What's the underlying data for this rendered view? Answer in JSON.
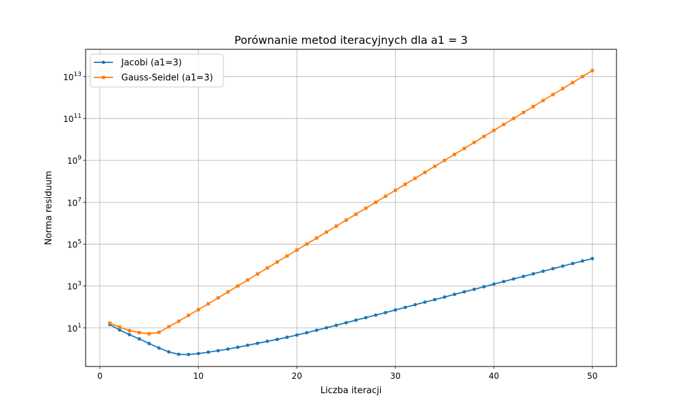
{
  "chart_data": {
    "type": "line",
    "title": "Porównanie metod iteracyjnych dla a1 = 3",
    "xlabel": "Liczba iteracji",
    "ylabel": "Norma residuum",
    "xlim": [
      -1.45,
      52.45
    ],
    "ylim": [
      0.145,
      200000000000000
    ],
    "yscale": "log",
    "grid": true,
    "legend_position": "top-left",
    "x_ticks": [
      0,
      10,
      20,
      30,
      40,
      50
    ],
    "y_ticks": [
      {
        "value": 10,
        "base": "10",
        "exp": "1"
      },
      {
        "value": 1000,
        "base": "10",
        "exp": "3"
      },
      {
        "value": 100000,
        "base": "10",
        "exp": "5"
      },
      {
        "value": 10000000,
        "base": "10",
        "exp": "7"
      },
      {
        "value": 1000000000,
        "base": "10",
        "exp": "9"
      },
      {
        "value": 100000000000,
        "base": "10",
        "exp": "11"
      },
      {
        "value": 10000000000000,
        "base": "10",
        "exp": "13"
      }
    ],
    "x": [
      1,
      2,
      3,
      4,
      5,
      6,
      7,
      8,
      9,
      10,
      11,
      12,
      13,
      14,
      15,
      16,
      17,
      18,
      19,
      20,
      21,
      22,
      23,
      24,
      25,
      26,
      27,
      28,
      29,
      30,
      31,
      32,
      33,
      34,
      35,
      36,
      37,
      38,
      39,
      40,
      41,
      42,
      43,
      44,
      45,
      46,
      47,
      48,
      49,
      50
    ],
    "series": [
      {
        "name": "Jacobi (a1=3)",
        "color": "#1f77b4",
        "marker": "circle",
        "values": [
          14.5,
          8.0,
          4.8,
          3.0,
          1.8,
          1.1,
          0.72,
          0.55,
          0.54,
          0.6,
          0.7,
          0.82,
          0.98,
          1.2,
          1.5,
          1.85,
          2.3,
          2.85,
          3.6,
          4.6,
          5.9,
          7.8,
          10.2,
          13.4,
          17.8,
          23.5,
          31.0,
          41.0,
          54.0,
          72.0,
          96.0,
          128.0,
          170.0,
          225.0,
          300.0,
          400.0,
          530.0,
          700.0,
          930.0,
          1240.0,
          1650.0,
          2180.0,
          2900.0,
          3850.0,
          5100.0,
          6750.0,
          8950.0,
          11900.0,
          15700.0,
          20500.0
        ]
      },
      {
        "name": "Gauss-Seidel (a1=3)",
        "color": "#ff7f0e",
        "marker": "square",
        "values": [
          17.0,
          11.0,
          7.5,
          6.0,
          5.3,
          6.2,
          11.5,
          21.0,
          40.0,
          75.0,
          142.0,
          272.0,
          525.0,
          1010.0,
          1950.0,
          3770.0,
          7300.0,
          14100.0,
          27200.0,
          52500.0,
          101000.0,
          195000.0,
          376000.0,
          725000.0,
          1400000.0,
          2700000.0,
          5200000.0,
          10000000.0,
          19400000.0,
          37500000.0,
          72000000.0,
          139000000.0,
          268000000.0,
          518000000.0,
          1000000000.0,
          1930000000.0,
          3720000000.0,
          7190000000.0,
          13900000000.0,
          26800000000.0,
          51700000000.0,
          99800000000.0,
          193000000000.0,
          372000000000.0,
          718000000000.0,
          1390000000000.0,
          2680000000000.0,
          5170000000000.0,
          10000000000000.0,
          19300000000000.0
        ]
      }
    ]
  }
}
